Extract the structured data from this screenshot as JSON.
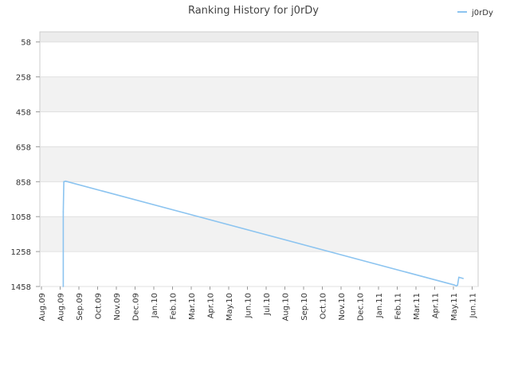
{
  "chart_data": {
    "type": "line",
    "title": "Ranking History for j0rDy",
    "legend": {
      "position": "top-right",
      "entries": [
        "j0rDy"
      ]
    },
    "y_axis": {
      "reversed": true,
      "ylim": [
        0,
        1458
      ],
      "ticks": [
        58,
        258,
        458,
        658,
        858,
        1058,
        1258,
        1458
      ],
      "grid": true,
      "banded": true
    },
    "x_axis": {
      "ticks": [
        "Aug.09",
        "Aug.09",
        "Sep.09",
        "Oct.09",
        "Nov.09",
        "Dec.09",
        "Jan.10",
        "Feb.10",
        "Mar.10",
        "Apr.10",
        "May.10",
        "Jun.10",
        "Jul.10",
        "Aug.10",
        "Sep.10",
        "Oct.10",
        "Nov.10",
        "Dec.10",
        "Jan.11",
        "Feb.11",
        "Mar.11",
        "Apr.11",
        "May.11",
        "Jun.11"
      ]
    },
    "series": [
      {
        "name": "j0rDy",
        "color": "#8cc4f0",
        "points": [
          {
            "x": "2009-08-20",
            "y": 1458
          },
          {
            "x": "2009-08-20",
            "y": 1030
          },
          {
            "x": "2009-08-21",
            "y": 858
          },
          {
            "x": "2009-08-24",
            "y": 855
          },
          {
            "x": "2011-05-18",
            "y": 1450
          },
          {
            "x": "2011-05-21",
            "y": 1455
          },
          {
            "x": "2011-05-23",
            "y": 1450
          },
          {
            "x": "2011-05-25",
            "y": 1405
          },
          {
            "x": "2011-06-01",
            "y": 1412
          }
        ]
      }
    ],
    "colors": {
      "band": "#f2f2f2",
      "top_band": "#ececec",
      "grid": "#e0e0e0",
      "axis": "#cccccc"
    }
  }
}
